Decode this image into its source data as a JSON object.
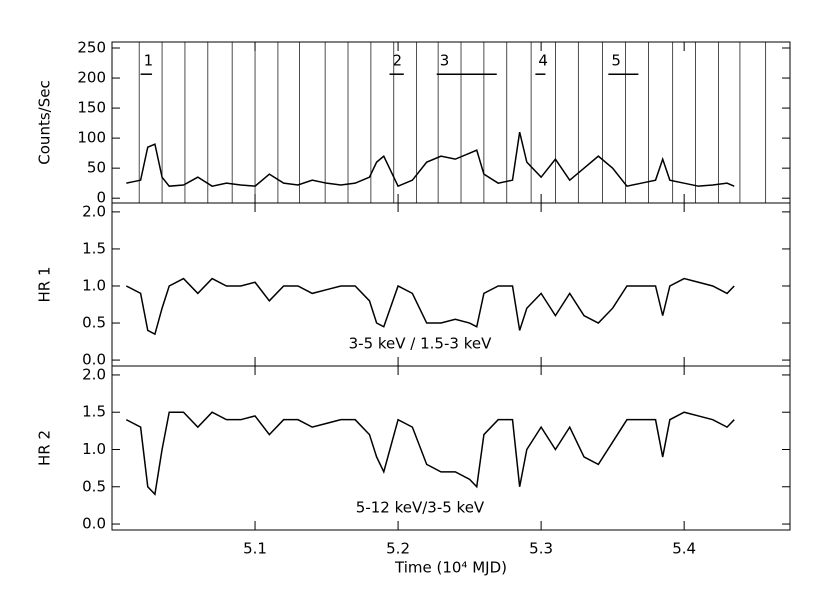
{
  "chart_data": [
    {
      "type": "line",
      "ylabel": "Counts/Sec",
      "xlim": [
        5.0,
        5.474
      ],
      "ylim": [
        -8,
        260
      ],
      "yticks": [
        0,
        50,
        100,
        150,
        200,
        250
      ],
      "x": [
        5.01,
        5.02,
        5.025,
        5.03,
        5.035,
        5.04,
        5.05,
        5.06,
        5.07,
        5.08,
        5.09,
        5.1,
        5.11,
        5.12,
        5.13,
        5.14,
        5.15,
        5.16,
        5.17,
        5.18,
        5.185,
        5.19,
        5.2,
        5.21,
        5.22,
        5.23,
        5.24,
        5.25,
        5.255,
        5.26,
        5.27,
        5.28,
        5.285,
        5.29,
        5.3,
        5.31,
        5.32,
        5.33,
        5.34,
        5.35,
        5.36,
        5.37,
        5.38,
        5.385,
        5.39,
        5.4,
        5.41,
        5.42,
        5.43,
        5.435
      ],
      "series": [
        {
          "color": "#000000",
          "values": [
            25,
            30,
            85,
            90,
            35,
            20,
            22,
            35,
            20,
            25,
            22,
            20,
            40,
            25,
            22,
            30,
            25,
            22,
            25,
            35,
            60,
            70,
            20,
            30,
            60,
            70,
            65,
            75,
            80,
            40,
            25,
            30,
            110,
            60,
            35,
            65,
            30,
            50,
            70,
            50,
            20,
            25,
            30,
            65,
            30,
            25,
            20,
            22,
            25,
            20
          ]
        }
      ],
      "markers": [
        5.019,
        5.035,
        5.051,
        5.067,
        5.084,
        5.1,
        5.116,
        5.131,
        5.149,
        5.165,
        5.181,
        5.197,
        5.213,
        5.228,
        5.244,
        5.26,
        5.276,
        5.293,
        5.31,
        5.326,
        5.343,
        5.359,
        5.375,
        5.392,
        5.408,
        5.424,
        5.439,
        5.457
      ],
      "episodes": [
        {
          "label": "1",
          "start": 5.02,
          "end": 5.028
        },
        {
          "label": "2",
          "start": 5.194,
          "end": 5.204
        },
        {
          "label": "3",
          "start": 5.227,
          "end": 5.269
        },
        {
          "label": "4",
          "start": 5.296,
          "end": 5.303
        },
        {
          "label": "5",
          "start": 5.347,
          "end": 5.368
        }
      ]
    },
    {
      "type": "line",
      "ylabel": "HR 1",
      "annotation": "3-5 keV / 1.5-3 keV",
      "xlim": [
        5.0,
        5.474
      ],
      "ylim": [
        -0.08,
        2.12
      ],
      "yticks": [
        {
          "value": 0,
          "label": "0.0"
        },
        0.5,
        {
          "value": 1,
          "label": "1.0"
        },
        1.5,
        {
          "value": 2,
          "label": "2.0"
        }
      ],
      "x": [
        5.01,
        5.02,
        5.025,
        5.03,
        5.035,
        5.04,
        5.05,
        5.06,
        5.07,
        5.08,
        5.09,
        5.1,
        5.11,
        5.12,
        5.13,
        5.14,
        5.15,
        5.16,
        5.17,
        5.18,
        5.185,
        5.19,
        5.2,
        5.21,
        5.22,
        5.23,
        5.24,
        5.25,
        5.255,
        5.26,
        5.27,
        5.28,
        5.285,
        5.29,
        5.3,
        5.31,
        5.32,
        5.33,
        5.34,
        5.35,
        5.36,
        5.37,
        5.38,
        5.385,
        5.39,
        5.4,
        5.41,
        5.42,
        5.43,
        5.435
      ],
      "series": [
        {
          "color": "#000000",
          "values": [
            1.0,
            0.9,
            0.4,
            0.35,
            0.7,
            1.0,
            1.1,
            0.9,
            1.1,
            1.0,
            1.0,
            1.05,
            0.8,
            1.0,
            1.0,
            0.9,
            0.95,
            1.0,
            1.0,
            0.8,
            0.5,
            0.45,
            1.0,
            0.9,
            0.5,
            0.5,
            0.55,
            0.5,
            0.45,
            0.9,
            1.0,
            1.0,
            0.4,
            0.7,
            0.9,
            0.6,
            0.9,
            0.6,
            0.5,
            0.7,
            1.0,
            1.0,
            1.0,
            0.6,
            1.0,
            1.1,
            1.05,
            1.0,
            0.9,
            1.0
          ]
        }
      ]
    },
    {
      "type": "line",
      "ylabel": "HR 2",
      "annotation": "5-12 keV/3-5 keV",
      "xlabel": "Time (10⁴ MJD)",
      "xlim": [
        5.0,
        5.474
      ],
      "xticks": [
        5.1,
        5.2,
        5.3,
        5.4
      ],
      "ylim": [
        -0.08,
        2.12
      ],
      "yticks": [
        {
          "value": 0,
          "label": "0.0"
        },
        0.5,
        {
          "value": 1,
          "label": "1.0"
        },
        1.5,
        {
          "value": 2,
          "label": "2.0"
        }
      ],
      "x": [
        5.01,
        5.02,
        5.025,
        5.03,
        5.035,
        5.04,
        5.05,
        5.06,
        5.07,
        5.08,
        5.09,
        5.1,
        5.11,
        5.12,
        5.13,
        5.14,
        5.15,
        5.16,
        5.17,
        5.18,
        5.185,
        5.19,
        5.2,
        5.21,
        5.22,
        5.23,
        5.24,
        5.25,
        5.255,
        5.26,
        5.27,
        5.28,
        5.285,
        5.29,
        5.3,
        5.31,
        5.32,
        5.33,
        5.34,
        5.35,
        5.36,
        5.37,
        5.38,
        5.385,
        5.39,
        5.4,
        5.41,
        5.42,
        5.43,
        5.435
      ],
      "series": [
        {
          "color": "#000000",
          "values": [
            1.4,
            1.3,
            0.5,
            0.4,
            1.0,
            1.5,
            1.5,
            1.3,
            1.5,
            1.4,
            1.4,
            1.45,
            1.2,
            1.4,
            1.4,
            1.3,
            1.35,
            1.4,
            1.4,
            1.2,
            0.9,
            0.7,
            1.4,
            1.3,
            0.8,
            0.7,
            0.7,
            0.6,
            0.5,
            1.2,
            1.4,
            1.4,
            0.5,
            1.0,
            1.3,
            1.0,
            1.3,
            0.9,
            0.8,
            1.1,
            1.4,
            1.4,
            1.4,
            0.9,
            1.4,
            1.5,
            1.45,
            1.4,
            1.3,
            1.4
          ]
        }
      ]
    }
  ]
}
